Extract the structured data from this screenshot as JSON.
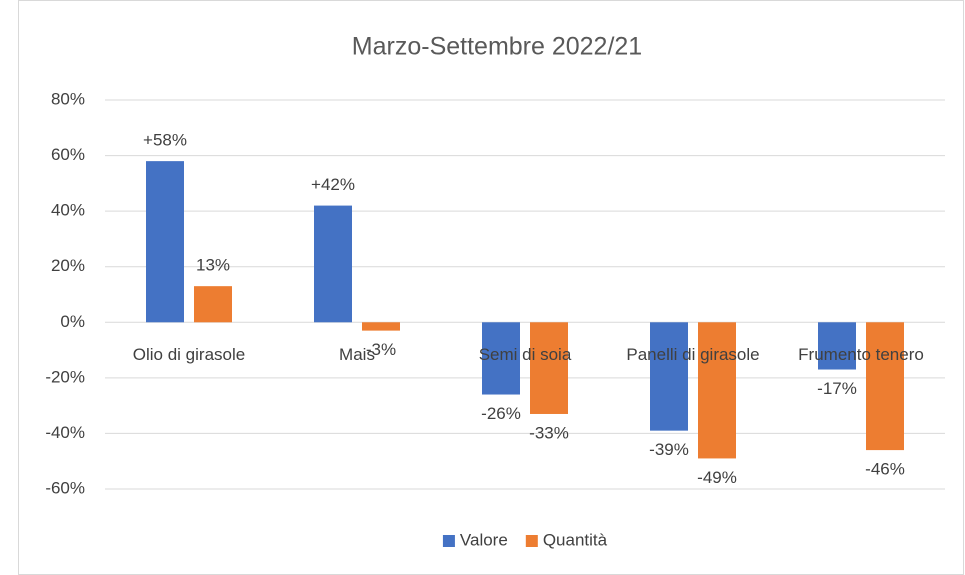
{
  "chart_data": {
    "type": "bar",
    "title": "Marzo-Settembre 2022/21",
    "categories": [
      "Olio di girasole",
      "Mais",
      "Semi di soia",
      "Panelli di girasole",
      "Frumento tenero"
    ],
    "series": [
      {
        "name": "Valore",
        "color": "#4472c4",
        "values": [
          58,
          42,
          -26,
          -39,
          -17
        ],
        "value_labels": [
          "+58%",
          "+42%",
          "-26%",
          "-39%",
          "-17%"
        ]
      },
      {
        "name": "Quantità",
        "color": "#ed7d31",
        "values": [
          13,
          -3,
          -33,
          -49,
          -46
        ],
        "value_labels": [
          "13%",
          "-3%",
          "-33%",
          "-49%",
          "-46%"
        ]
      }
    ],
    "ylim": [
      -60,
      80
    ],
    "yticks": [
      {
        "value": -60,
        "label": "-60%"
      },
      {
        "value": -40,
        "label": "-40%"
      },
      {
        "value": -20,
        "label": "-20%"
      },
      {
        "value": 0,
        "label": "0%"
      },
      {
        "value": 20,
        "label": "20%"
      },
      {
        "value": 40,
        "label": "40%"
      },
      {
        "value": 60,
        "label": "60%"
      },
      {
        "value": 80,
        "label": "80%"
      }
    ],
    "grid": true,
    "legend": "bottom"
  }
}
